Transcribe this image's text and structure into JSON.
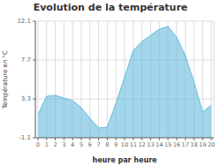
{
  "chart_data": {
    "type": "area",
    "title": "Evolution de la température",
    "xlabel": "heure par heure",
    "ylabel": "Température en °C",
    "x": [
      0,
      1,
      2,
      3,
      4,
      5,
      6,
      7,
      8,
      9,
      10,
      11,
      12,
      13,
      14,
      15,
      16,
      17,
      18,
      19,
      20
    ],
    "values": [
      1.5,
      3.6,
      3.7,
      3.4,
      3.1,
      2.3,
      1.1,
      0.0,
      0.1,
      2.8,
      5.8,
      8.8,
      9.8,
      10.5,
      11.2,
      11.5,
      10.3,
      8.2,
      5.2,
      1.8,
      2.6
    ],
    "color": "#66bbdd",
    "xlim": [
      -0.3,
      20.3
    ],
    "xticks": [
      0,
      1,
      2,
      3,
      4,
      5,
      6,
      7,
      8,
      9,
      10,
      11,
      12,
      13,
      14,
      15,
      16,
      17,
      18,
      19,
      20
    ],
    "ylim": [
      -1.1,
      12.1
    ],
    "yticks": [
      -1.1,
      3.3,
      7.7,
      12.1
    ],
    "grid": true
  }
}
